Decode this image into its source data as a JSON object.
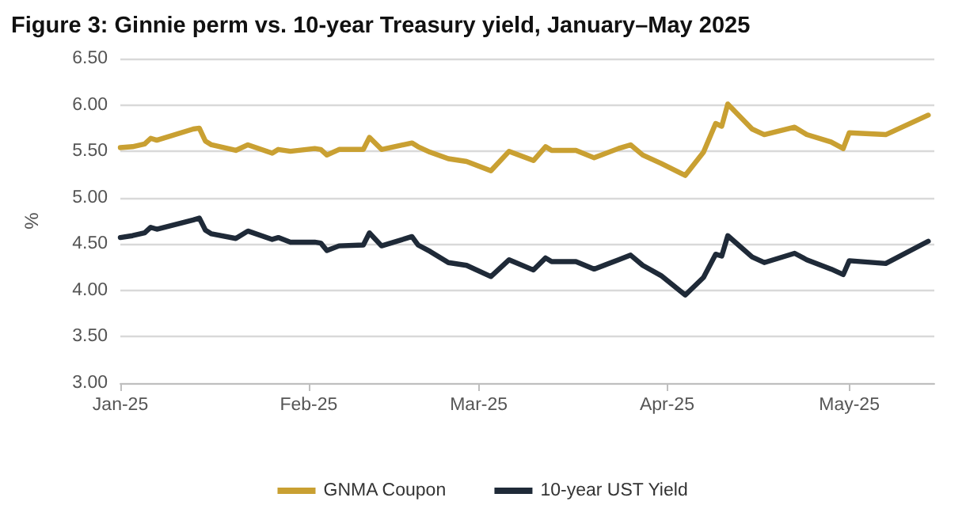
{
  "chart_data": {
    "type": "line",
    "title": "Figure 3: Ginnie perm vs. 10-year Treasury yield, January–May 2025",
    "ylabel": "%",
    "x": [
      "2025-01-01",
      "2025-01-03",
      "2025-01-05",
      "2025-01-06",
      "2025-01-07",
      "2025-01-13",
      "2025-01-14",
      "2025-01-15",
      "2025-01-16",
      "2025-01-20",
      "2025-01-22",
      "2025-01-26",
      "2025-01-27",
      "2025-01-29",
      "2025-02-02",
      "2025-02-03",
      "2025-02-04",
      "2025-02-06",
      "2025-02-10",
      "2025-02-11",
      "2025-02-13",
      "2025-02-18",
      "2025-02-19",
      "2025-02-21",
      "2025-02-24",
      "2025-02-27",
      "2025-03-03",
      "2025-03-06",
      "2025-03-10",
      "2025-03-12",
      "2025-03-13",
      "2025-03-17",
      "2025-03-20",
      "2025-03-24",
      "2025-03-26",
      "2025-03-28",
      "2025-03-31",
      "2025-04-04",
      "2025-04-07",
      "2025-04-09",
      "2025-04-10",
      "2025-04-11",
      "2025-04-15",
      "2025-04-17",
      "2025-04-22",
      "2025-04-24",
      "2025-04-28",
      "2025-04-30",
      "2025-05-01",
      "2025-05-07",
      "2025-05-14"
    ],
    "series": [
      {
        "name": "GNMA Coupon",
        "color": "#c9a032",
        "values": [
          5.54,
          5.55,
          5.58,
          5.64,
          5.62,
          5.74,
          5.75,
          5.61,
          5.57,
          5.51,
          5.57,
          5.48,
          5.52,
          5.5,
          5.53,
          5.52,
          5.46,
          5.52,
          5.52,
          5.65,
          5.52,
          5.59,
          5.55,
          5.49,
          5.42,
          5.39,
          5.29,
          5.5,
          5.4,
          5.55,
          5.51,
          5.51,
          5.43,
          5.53,
          5.57,
          5.46,
          5.37,
          5.24,
          5.49,
          5.8,
          5.77,
          6.01,
          5.74,
          5.68,
          5.76,
          5.68,
          5.6,
          5.53,
          5.7,
          5.68,
          5.89
        ]
      },
      {
        "name": "10-year UST Yield",
        "color": "#1f2a38",
        "values": [
          4.57,
          4.59,
          4.62,
          4.68,
          4.66,
          4.76,
          4.78,
          4.65,
          4.61,
          4.56,
          4.64,
          4.55,
          4.57,
          4.52,
          4.52,
          4.51,
          4.43,
          4.48,
          4.49,
          4.62,
          4.48,
          4.58,
          4.49,
          4.42,
          4.3,
          4.27,
          4.15,
          4.33,
          4.22,
          4.35,
          4.31,
          4.31,
          4.23,
          4.33,
          4.38,
          4.27,
          4.16,
          3.95,
          4.14,
          4.39,
          4.37,
          4.59,
          4.36,
          4.3,
          4.4,
          4.33,
          4.23,
          4.17,
          4.32,
          4.29,
          4.53
        ]
      }
    ],
    "xlim": [
      "2025-01-01",
      "2025-05-15"
    ],
    "xticks": [
      {
        "value": "2025-01-01",
        "label": "Jan-25"
      },
      {
        "value": "2025-02-01",
        "label": "Feb-25"
      },
      {
        "value": "2025-03-01",
        "label": "Mar-25"
      },
      {
        "value": "2025-04-01",
        "label": "Apr-25"
      },
      {
        "value": "2025-05-01",
        "label": "May-25"
      }
    ],
    "ylim": [
      3,
      6.5
    ],
    "yticks": [
      {
        "value": 3,
        "label": "3.00"
      },
      {
        "value": 3.5,
        "label": "3.50"
      },
      {
        "value": 4,
        "label": "4.00"
      },
      {
        "value": 4.5,
        "label": "4.50"
      },
      {
        "value": 5,
        "label": "5.00"
      },
      {
        "value": 5.5,
        "label": "5.50"
      },
      {
        "value": 6,
        "label": "6.00"
      },
      {
        "value": 6.5,
        "label": "6.50"
      }
    ],
    "grid": "y",
    "legend": "bottom",
    "marker": "none",
    "line_style": "solid"
  }
}
